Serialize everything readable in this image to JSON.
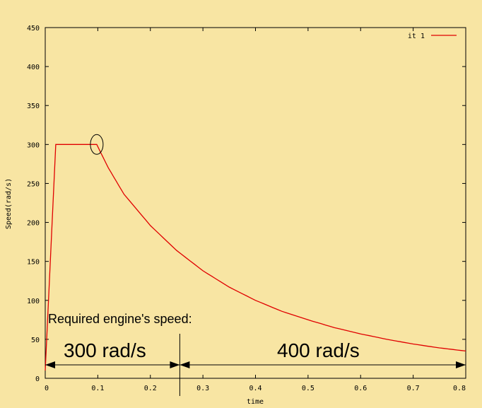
{
  "chart_data": {
    "type": "line",
    "title": "",
    "xlabel": "time",
    "ylabel": "Speed(rad/s)",
    "xlim": [
      0,
      0.8
    ],
    "ylim": [
      0,
      450
    ],
    "x_ticks": [
      "0",
      "0.1",
      "0.2",
      "0.3",
      "0.4",
      "0.5",
      "0.6",
      "0.7",
      "0.8"
    ],
    "y_ticks": [
      "0",
      "50",
      "100",
      "150",
      "200",
      "250",
      "300",
      "350",
      "400",
      "450"
    ],
    "grid": false,
    "legend_position": "top-right",
    "series": [
      {
        "name": "it 1",
        "color": "#e00000",
        "points": [
          [
            0.0,
            10
          ],
          [
            0.02,
            300
          ],
          [
            0.098,
            300
          ],
          [
            0.12,
            270
          ],
          [
            0.15,
            236
          ],
          [
            0.2,
            196
          ],
          [
            0.25,
            164
          ],
          [
            0.3,
            138
          ],
          [
            0.35,
            117
          ],
          [
            0.4,
            100
          ],
          [
            0.45,
            86
          ],
          [
            0.5,
            75
          ],
          [
            0.55,
            65
          ],
          [
            0.6,
            57
          ],
          [
            0.65,
            50
          ],
          [
            0.7,
            44
          ],
          [
            0.75,
            39
          ],
          [
            0.8,
            35
          ]
        ]
      }
    ],
    "annotations": {
      "heading": "Required engine's speed:",
      "segment_1": "300 rad/s",
      "segment_2": "400 rad/s",
      "divider_x": 0.256,
      "highlight_point": [
        0.098,
        300
      ]
    }
  }
}
